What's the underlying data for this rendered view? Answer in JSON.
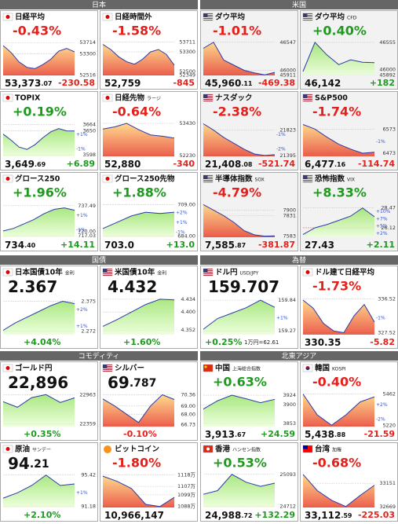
{
  "sections": [
    {
      "title": "日本",
      "panels": [
        {
          "name": "日経平均",
          "change": "-0.43%",
          "price": "53,373",
          "price_dec": ".07",
          "diff": "-230.58",
          "ylim": [
            52500,
            53750
          ],
          "yticks": [
            53714,
            53300,
            52516
          ],
          "values": [
            53604,
            53350,
            53000,
            52800,
            52750,
            52900,
            53100,
            53400,
            53500,
            53373
          ]
        },
        {
          "name": "日経時間外",
          "change": "-1.58%",
          "price": "52,759",
          "diff": "-845",
          "ylim": [
            52340,
            53720
          ],
          "yticks": [
            53711,
            53300,
            52500,
            52349
          ],
          "values": [
            53604,
            53400,
            53100,
            52900,
            52800,
            53000,
            53300,
            53400,
            53200,
            52759
          ]
        },
        {
          "name": "TOPIX",
          "change": "+0.19%",
          "price": "3,649",
          "price_dec": ".69",
          "diff": "+6.89",
          "ylim": [
            3595,
            3668
          ],
          "yticks": [
            3664,
            3650,
            3598
          ],
          "pct": [
            "+1%",
            "-1%"
          ],
          "values": [
            3643,
            3630,
            3615,
            3610,
            3620,
            3635,
            3648,
            3655,
            3650,
            3649.69
          ]
        },
        {
          "name": "日経先物",
          "tag": "ラージ",
          "change": "-0.64%",
          "price": "52,880",
          "diff": "-340",
          "ylim": [
            52200,
            53460
          ],
          "yticks": [
            53430,
            52230
          ],
          "values": [
            53220,
            53300,
            53430,
            53200,
            53000,
            52950,
            52880
          ]
        },
        {
          "name": "グロース250",
          "change": "+1.96%",
          "price": "734",
          "price_dec": ".40",
          "diff": "+14.11",
          "ylim": [
            716,
            739
          ],
          "yticks": [
            737.49,
            {
              "value": 720,
              "label": "720.00"
            },
            717.03
          ],
          "pct": [
            "+1%",
            "-1%"
          ],
          "values": [
            720.3,
            722,
            725,
            728,
            732,
            735,
            736,
            734.4
          ]
        },
        {
          "name": "グロース250先物",
          "change": "+1.88%",
          "price": "703.0",
          "diff": "+13.0",
          "ylim": [
            683,
            710
          ],
          "yticks": [
            {
              "value": 709,
              "label": "709.00"
            },
            {
              "value": 684,
              "label": "684.00"
            }
          ],
          "pct": [
            "+2%",
            "+1%",
            "-1%"
          ],
          "values": [
            690,
            695,
            700,
            703,
            702,
            703
          ]
        }
      ]
    },
    {
      "title": "米国",
      "panels": [
        {
          "name": "ダウ平均",
          "change": "-1.01%",
          "price": "45,960",
          "price_dec": ".11",
          "diff": "-469.38",
          "ylim": [
            45900,
            46560
          ],
          "yticks": [
            46547,
            46000,
            45911
          ],
          "values": [
            46430,
            46547,
            46200,
            46100,
            46000,
            45950,
            45911,
            45960.11
          ]
        },
        {
          "name": "ダウ平均",
          "tag": "CFD",
          "change": "+0.40%",
          "price": "46,142",
          "diff": "+182",
          "ylim": [
            45880,
            46570
          ],
          "yticks": [
            46555,
            46000,
            45892
          ],
          "values": [
            45960,
            46555,
            46300,
            46100,
            46200,
            46150,
            46142
          ]
        },
        {
          "name": "ナスダック",
          "change": "-2.38%",
          "price": "21,408",
          "price_dec": ".08",
          "diff": "-521.74",
          "ylim": [
            21380,
            21950
          ],
          "yticks": [
            21823,
            21395
          ],
          "pct": [
            "-1%",
            "-2%"
          ],
          "values": [
            21930,
            21823,
            21700,
            21600,
            21500,
            21420,
            21395,
            21408.08
          ]
        },
        {
          "name": "S&P500",
          "change": "-1.74%",
          "price": "6,477",
          "price_dec": ".16",
          "diff": "-114.74",
          "ylim": [
            6460,
            6600
          ],
          "yticks": [
            6573,
            6473
          ],
          "pct": [
            "-1%"
          ],
          "values": [
            6592,
            6573,
            6540,
            6510,
            6490,
            6473,
            6477.16
          ]
        },
        {
          "name": "半導体指数",
          "tag": "SOX",
          "change": "-4.79%",
          "price": "7,585",
          "price_dec": ".87",
          "diff": "-381.87",
          "ylim": [
            7570,
            7980
          ],
          "yticks": [
            7900,
            7831,
            7583
          ],
          "values": [
            7967,
            7900,
            7831,
            7750,
            7650,
            7600,
            7583,
            7585.87
          ]
        },
        {
          "name": "恐怖指数",
          "tag": "VIX",
          "change": "+8.33%",
          "price": "27.43",
          "diff": "+2.11",
          "ylim": [
            25,
            29
          ],
          "yticks": [
            28.47,
            26.12
          ],
          "pct": [
            "+10%",
            "+7%",
            "+5%",
            "+2%"
          ],
          "values": [
            25.32,
            26.12,
            26.5,
            27,
            27.5,
            28.47,
            27.43
          ]
        }
      ]
    },
    {
      "title": "国債",
      "panels": [
        {
          "name": "日本国債10年",
          "tag": "金利",
          "headline": "price",
          "price": "2.367",
          "change": "+4.04%",
          "ylim": [
            2.26,
            2.39
          ],
          "yticks": [
            2.375,
            2.272
          ],
          "pct": [
            "+2%",
            "+1%"
          ],
          "values": [
            2.275,
            2.3,
            2.32,
            2.34,
            2.36,
            2.375,
            2.367
          ]
        },
        {
          "name": "米国債10年",
          "tag": "金利",
          "headline": "price",
          "price": "4.432",
          "change": "+1.60%",
          "ylim": [
            4.34,
            4.44
          ],
          "yticks": [
            4.434,
            {
              "value": 4.4,
              "label": "4.400"
            },
            4.352
          ],
          "values": [
            4.362,
            4.38,
            4.4,
            4.42,
            4.434,
            4.432
          ]
        }
      ]
    },
    {
      "title": "為替",
      "panels": [
        {
          "name": "ドル円",
          "tag": "USD/JPY",
          "headline": "price",
          "price": "159.707",
          "change": "+0.25%",
          "footnote": "1万円=62.61",
          "ylim": [
            159.2,
            159.9
          ],
          "yticks": [
            159.84,
            159.27
          ],
          "pct": [
            "+1%"
          ],
          "values": [
            159.3,
            159.5,
            159.6,
            159.7,
            159.84,
            159.707
          ]
        },
        {
          "name": "ドル建て日経平均",
          "change": "-1.73%",
          "price": "330.35",
          "diff": "-5.82",
          "ylim": [
            327,
            337
          ],
          "yticks": [
            336.52,
            327.52
          ],
          "pct": [
            "-1%"
          ],
          "values": [
            336.17,
            334,
            330,
            328,
            327.52,
            332,
            335,
            330.35
          ]
        }
      ]
    },
    {
      "title": "コモディティ",
      "panels": [
        {
          "name": "ゴールド円",
          "headline": "price",
          "price": "22,896",
          "change": "+0.35%",
          "ylim": [
            22300,
            23000
          ],
          "yticks": [
            22963,
            22359
          ],
          "values": [
            22816,
            22700,
            22900,
            22963,
            22800,
            22896
          ]
        },
        {
          "name": "シルバー",
          "headline": "price",
          "price": "69",
          "price_dec": ".787",
          "change": "-0.10%",
          "ylim": [
            66.5,
            70.6
          ],
          "yticks": [
            70.36,
            {
              "value": 69,
              "label": "69.00"
            },
            {
              "value": 68,
              "label": "68.00"
            },
            66.73
          ],
          "values": [
            69.86,
            69,
            68,
            67,
            69,
            70.36,
            69.787
          ]
        },
        {
          "name": "原油",
          "tag": "サンデー",
          "headline": "price",
          "price": "94",
          "price_dec": ".21",
          "change": "+2.10%",
          "ylim": [
            91,
            95.6
          ],
          "yticks": [
            95.42,
            91.18
          ],
          "pct": [
            "+1%"
          ],
          "values": [
            92.27,
            93,
            94,
            95.42,
            94,
            94.21
          ]
        },
        {
          "name": "ビットコイン",
          "change": "-1.80%",
          "price": "10,966,147",
          "ylim": [
            10870000,
            11190000
          ],
          "yticks": [
            {
              "value": 11180000,
              "label": "1118万"
            },
            {
              "value": 11070000,
              "label": "1107万"
            },
            {
              "value": 10990000,
              "label": "1099万"
            },
            {
              "value": 10880000,
              "label": "1088万"
            }
          ],
          "values": [
            11167000,
            11118000,
            11050000,
            10900000,
            10880000,
            10966147
          ]
        }
      ]
    },
    {
      "title": "北東アジア",
      "panels": [
        {
          "name": "中国",
          "tag": "上海総合指数",
          "change": "+0.63%",
          "price": "3,913",
          "price_dec": ".67",
          "diff": "+24.59",
          "ylim": [
            3845,
            3930
          ],
          "yticks": [
            3924,
            3900,
            3853
          ],
          "values": [
            3889,
            3910,
            3924,
            3915,
            3905,
            3913.67
          ]
        },
        {
          "name": "韓国",
          "tag": "KOSPI",
          "change": "-0.40%",
          "price": "5,438",
          "price_dec": ".88",
          "diff": "-21.59",
          "ylim": [
            5210,
            5470
          ],
          "yticks": [
            5462,
            5220
          ],
          "pct": [
            "+2%",
            "-2%"
          ],
          "values": [
            5460,
            5300,
            5220,
            5300,
            5400,
            5438.88
          ]
        },
        {
          "name": "香港",
          "tag": "ハンセン指数",
          "change": "+0.53%",
          "price": "24,988",
          "price_dec": ".72",
          "diff": "+132.29",
          "ylim": [
            24700,
            25100
          ],
          "yticks": [
            25093,
            24712
          ],
          "values": [
            24856,
            24900,
            25093,
            25000,
            24950,
            24988.72
          ]
        },
        {
          "name": "台湾",
          "tag": "加権",
          "change": "-0.68%",
          "price": "33,112",
          "price_dec": ".59",
          "diff": "-225.03",
          "ylim": [
            32650,
            33350
          ],
          "yticks": [
            33151,
            32669
          ],
          "values": [
            33337,
            33000,
            32800,
            32669,
            32900,
            33112.59
          ]
        }
      ]
    }
  ]
}
